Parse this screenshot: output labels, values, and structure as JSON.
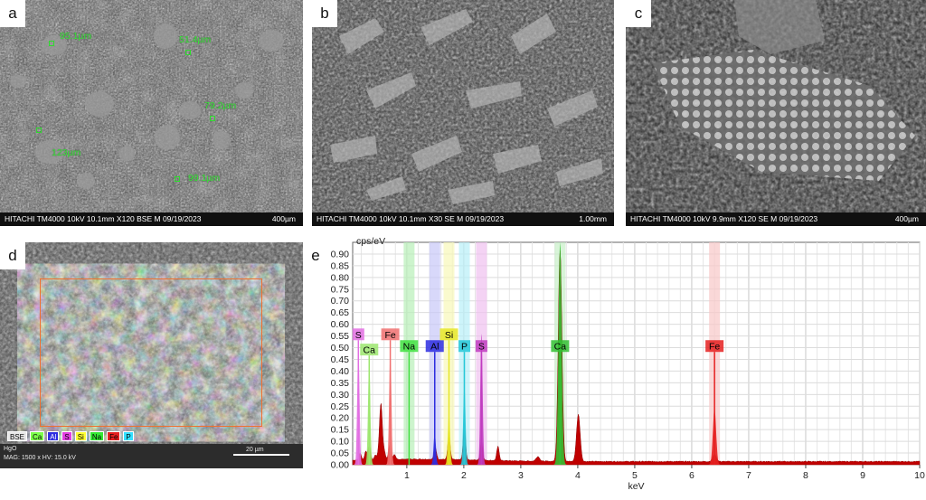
{
  "panels": {
    "a": {
      "letter": "a",
      "footer": "HITACHI TM4000 10kV 10.1mm X120 BSE M 09/19/2023",
      "scale": "400µm",
      "measurements": [
        "95.1µm",
        "51.4µm",
        "79.2µm",
        "123µm",
        "99.1µm"
      ]
    },
    "b": {
      "letter": "b",
      "footer": "HITACHI TM4000 10kV 10.1mm X30 SE M 09/19/2023",
      "scale": "1.00mm"
    },
    "c": {
      "letter": "c",
      "footer": "HITACHI TM4000 10kV 9.9mm X120 SE M 09/19/2023",
      "scale": "400µm"
    },
    "d": {
      "letter": "d",
      "legend": [
        "BSE",
        "Ca",
        "Al",
        "S",
        "Si",
        "Na",
        "Fe",
        "P"
      ],
      "legend_colors": [
        "#e8e8e8",
        "#7cff4a",
        "#2d2de0",
        "#e23ee2",
        "#ffff33",
        "#33e833",
        "#e52020",
        "#33e0ff"
      ],
      "footer_line1": "HgO",
      "footer_line2": "MAG: 1500 x   HV: 15.0 kV",
      "scale": "20 µm"
    },
    "e": {
      "letter": "e"
    }
  },
  "chart_data": {
    "type": "area",
    "ylabel": "cps/eV",
    "xlabel": "keV",
    "xlim": [
      0,
      10
    ],
    "ylim": [
      0,
      0.95
    ],
    "x_ticks": [
      1,
      2,
      3,
      4,
      5,
      6,
      7,
      8,
      9,
      10
    ],
    "y_ticks": [
      "0.00",
      "0.05",
      "0.10",
      "0.15",
      "0.20",
      "0.25",
      "0.30",
      "0.35",
      "0.40",
      "0.45",
      "0.50",
      "0.55",
      "0.60",
      "0.65",
      "0.70",
      "0.75",
      "0.80",
      "0.85",
      "0.90"
    ],
    "y_tick_values": [
      0,
      0.05,
      0.1,
      0.15,
      0.2,
      0.25,
      0.3,
      0.35,
      0.4,
      0.45,
      0.5,
      0.55,
      0.6,
      0.65,
      0.7,
      0.75,
      0.8,
      0.85,
      0.9
    ],
    "background_spectrum": {
      "color": "#c00000",
      "peaks": [
        {
          "x": 0.18,
          "y": 0.03
        },
        {
          "x": 0.28,
          "y": 0.035
        },
        {
          "x": 0.34,
          "y": 0.06
        },
        {
          "x": 0.45,
          "y": 0.02
        },
        {
          "x": 0.52,
          "y": 0.07
        },
        {
          "x": 0.55,
          "y": 0.21
        },
        {
          "x": 0.6,
          "y": 0.04
        },
        {
          "x": 0.7,
          "y": 0.06
        },
        {
          "x": 0.78,
          "y": 0.02
        },
        {
          "x": 1.5,
          "y": 0.05
        },
        {
          "x": 1.74,
          "y": 0.1
        },
        {
          "x": 2.01,
          "y": 0.14
        },
        {
          "x": 2.31,
          "y": 0.08
        },
        {
          "x": 2.6,
          "y": 0.06
        },
        {
          "x": 3.69,
          "y": 0.9
        },
        {
          "x": 4.01,
          "y": 0.2
        },
        {
          "x": 3.3,
          "y": 0.02
        },
        {
          "x": 6.4,
          "y": 0.03
        }
      ]
    },
    "element_peaks": [
      {
        "element": "S",
        "x": 0.15,
        "y": 0.5,
        "color": "#e26ee2",
        "label_y": 0.555
      },
      {
        "element": "Ca",
        "x": 0.34,
        "y": 0.45,
        "color": "#9ce66e",
        "label_y": 0.49
      },
      {
        "element": "Fe",
        "x": 0.71,
        "y": 0.48,
        "color": "#f07070",
        "label_y": 0.555
      },
      {
        "element": "Na",
        "x": 1.04,
        "y": 0.01,
        "color": "#40e040",
        "label_y": 0.505
      },
      {
        "element": "Al",
        "x": 1.49,
        "y": 0.14,
        "color": "#2d2de0",
        "label_y": 0.505
      },
      {
        "element": "Si",
        "x": 1.74,
        "y": 0.22,
        "color": "#e6e626",
        "label_y": 0.555
      },
      {
        "element": "P",
        "x": 2.01,
        "y": 0.34,
        "color": "#26c8d8",
        "label_y": 0.505
      },
      {
        "element": "S",
        "x": 2.31,
        "y": 0.56,
        "color": "#c03cc0",
        "label_y": 0.505
      },
      {
        "element": "Ca",
        "x": 3.69,
        "y": 0.95,
        "color": "#33c033",
        "label_y": 0.505
      },
      {
        "element": "Fe",
        "x": 6.4,
        "y": 0.24,
        "color": "#e52020",
        "label_y": 0.505
      }
    ],
    "bands": [
      {
        "x": 1.04,
        "color": "#b8f0b8"
      },
      {
        "x": 1.49,
        "color": "#c8c8f8"
      },
      {
        "x": 1.74,
        "color": "#f8f8b8"
      },
      {
        "x": 2.01,
        "color": "#b8f0f8"
      },
      {
        "x": 2.31,
        "color": "#f0c0f0"
      },
      {
        "x": 3.69,
        "color": "#c8f0c8"
      },
      {
        "x": 6.4,
        "color": "#f8c8c8"
      }
    ]
  }
}
